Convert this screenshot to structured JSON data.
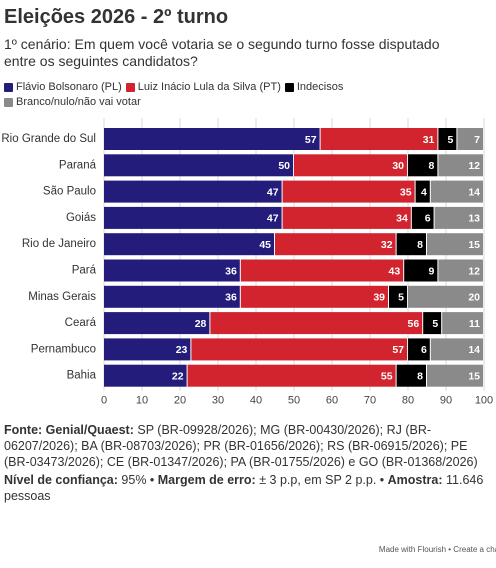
{
  "chart_data": {
    "type": "stacked-bar-horizontal",
    "title": "Eleições 2026 - 2º turno",
    "subtitle": "1º cenário: Em quem você votaria se o segundo turno fosse disputado entre os seguintes candidatos?",
    "categories": [
      "Rio Grande do Sul",
      "Paraná",
      "São Paulo",
      "Goiás",
      "Rio de Janeiro",
      "Pará",
      "Minas Gerais",
      "Ceará",
      "Pernambuco",
      "Bahia"
    ],
    "series": [
      {
        "name": "Flávio Bolsonaro (PL)",
        "color": "#231c7b",
        "values": [
          57,
          50,
          47,
          47,
          45,
          36,
          36,
          28,
          23,
          22
        ]
      },
      {
        "name": "Luiz Inácio Lula da Silva (PT)",
        "color": "#d1242f",
        "values": [
          31,
          30,
          35,
          34,
          32,
          43,
          39,
          56,
          57,
          55
        ]
      },
      {
        "name": "Indecisos",
        "color": "#000000",
        "values": [
          5,
          8,
          4,
          6,
          8,
          9,
          5,
          5,
          6,
          8
        ]
      },
      {
        "name": "Branco/nulo/não vai votar",
        "color": "#8a8a8a",
        "values": [
          7,
          12,
          14,
          13,
          15,
          12,
          20,
          11,
          14,
          15
        ]
      }
    ],
    "xlim": [
      0,
      100
    ],
    "xticks": [
      0,
      10,
      20,
      30,
      40,
      50,
      60,
      70,
      80,
      90,
      100
    ],
    "grid": true
  },
  "footer": {
    "source": {
      "label": "Fonte: Genial/Quaest:",
      "text": " SP (BR-09928/2026); MG (BR-00430/2026); RJ (BR-06207/2026); BA (BR-08703/2026); PR (BR-01656/2026); RS (BR-06915/2026); PE (BR-03473/2026); CE (BR-01347/2026); PA (BR-01755/2026) e GO (BR-01368/2026)"
    },
    "notes": [
      {
        "label": "Nível de confiança:",
        "text": " 95% • "
      },
      {
        "label": "Margem de erro:",
        "text": " ± 3 p.p, em SP 2 p.p. • "
      },
      {
        "label": "Amostra:",
        "text": " 11.646 pessoas"
      }
    ],
    "credit": "Made with Flourish • Create a chart"
  }
}
